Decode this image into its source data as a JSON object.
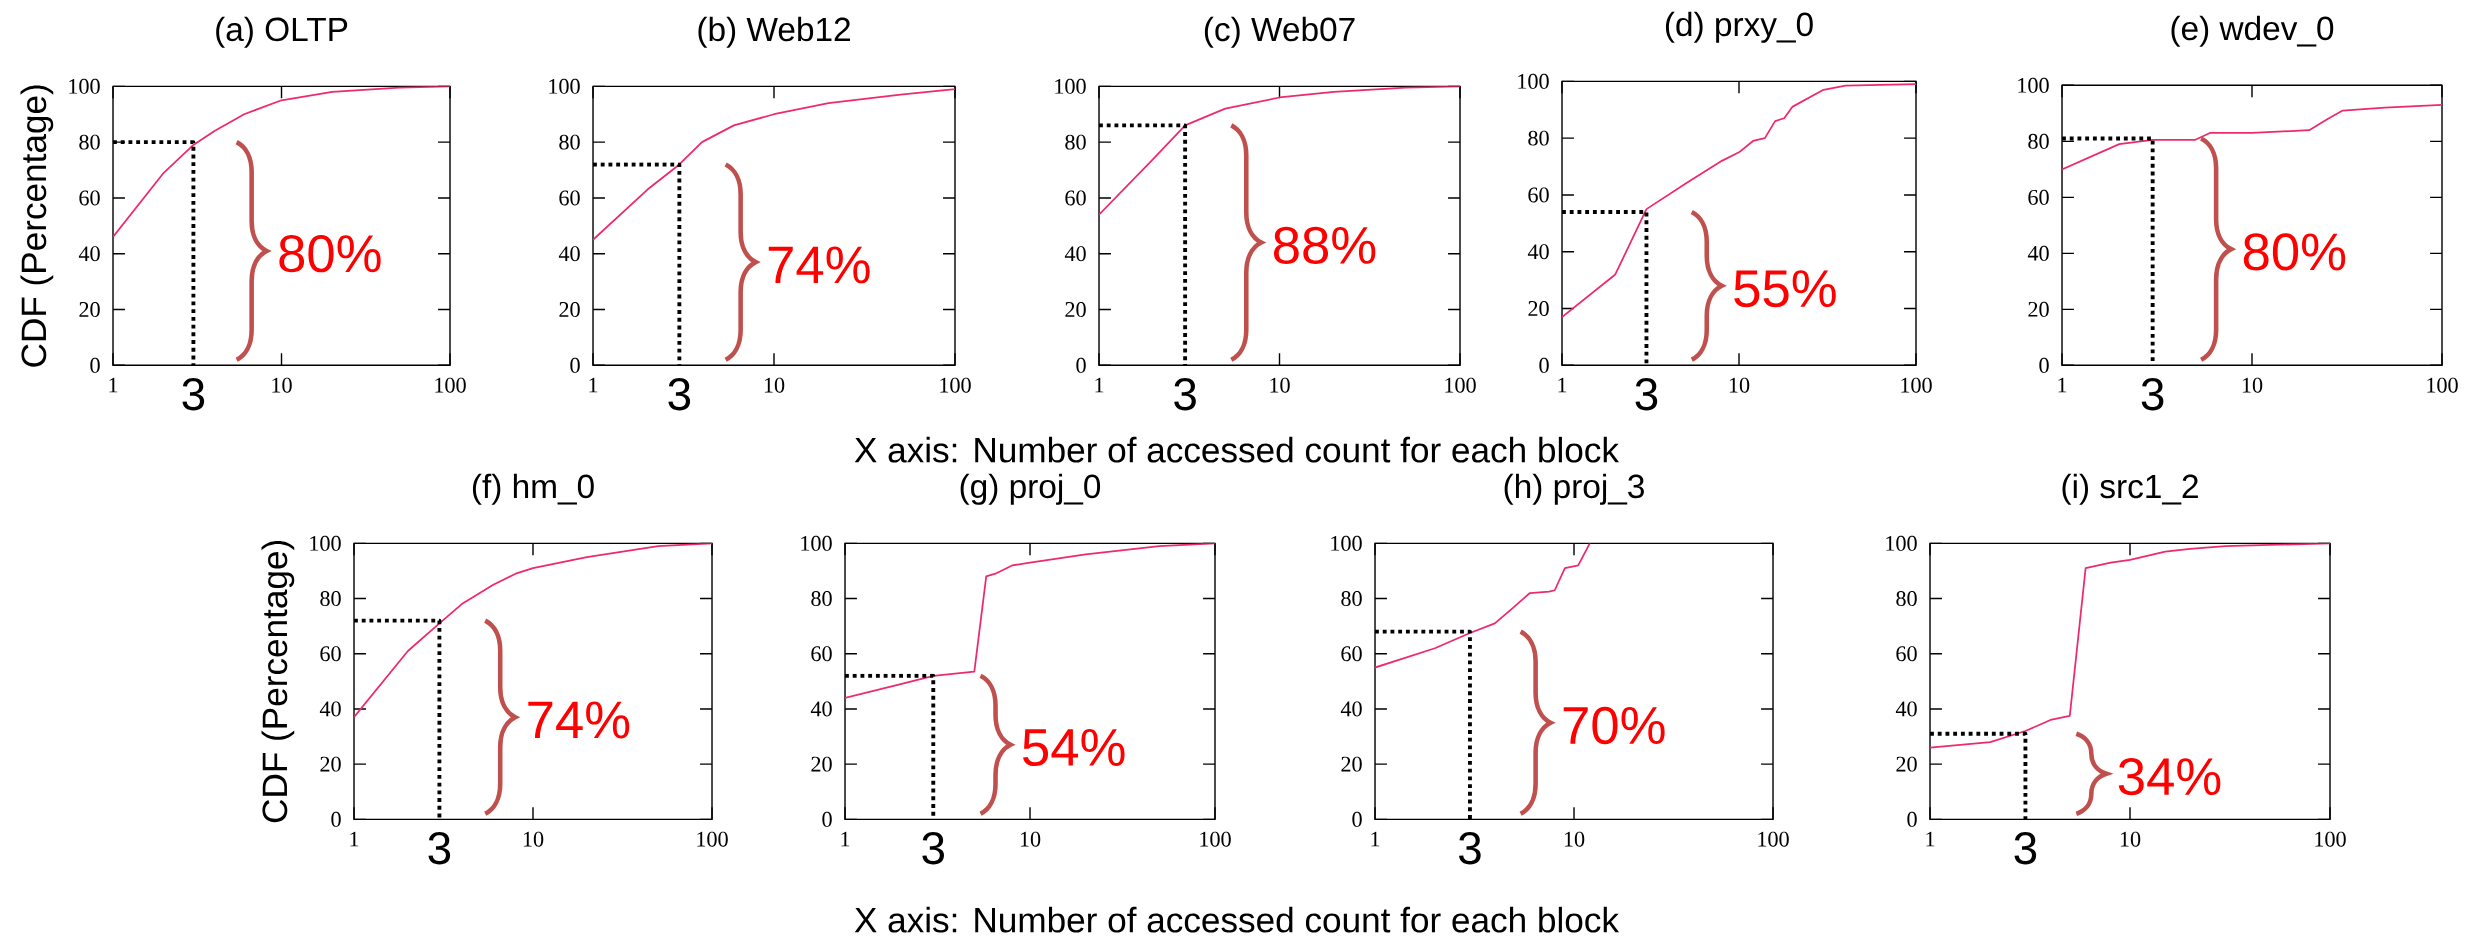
{
  "chart_data": [
    {
      "type": "line",
      "title": "(a) OLTP",
      "ylabel": "CDF (Percentage)",
      "log": "x",
      "xlim": [
        1,
        100
      ],
      "ylim": [
        0,
        100
      ],
      "xticks": [
        1,
        10,
        100
      ],
      "yticks": [
        0,
        20,
        40,
        60,
        80,
        100
      ],
      "annotations": [
        "80%",
        "3"
      ],
      "series": [
        {
          "color": "#ee2a6a",
          "x": [
            1,
            2,
            3,
            4,
            6,
            10,
            20,
            50,
            100
          ],
          "values": [
            46,
            69,
            79,
            84,
            90,
            95,
            98,
            99.5,
            100
          ]
        },
        {
          "color": "#000000",
          "line_style": "dotted",
          "x": [
            1,
            3,
            3
          ],
          "values": [
            80,
            80,
            0
          ]
        }
      ]
    },
    {
      "type": "line",
      "title": "(b) Web12",
      "log": "x",
      "xlim": [
        1,
        100
      ],
      "ylim": [
        0,
        100
      ],
      "xticks": [
        1,
        10,
        100
      ],
      "yticks": [
        0,
        20,
        40,
        60,
        80,
        100
      ],
      "annotations": [
        "74%",
        "3"
      ],
      "series": [
        {
          "color": "#ee2a6a",
          "x": [
            1,
            2,
            3,
            4,
            6,
            10,
            20,
            50,
            100
          ],
          "values": [
            45,
            63,
            72,
            80,
            86,
            90,
            94,
            97,
            99
          ]
        },
        {
          "color": "#000000",
          "line_style": "dotted",
          "x": [
            1,
            3,
            3
          ],
          "values": [
            72,
            72,
            0
          ]
        }
      ]
    },
    {
      "type": "line",
      "title": "(c) Web07",
      "xlabel": "X axis: Number of accessed count for each block",
      "log": "x",
      "xlim": [
        1,
        100
      ],
      "ylim": [
        0,
        100
      ],
      "xticks": [
        1,
        10,
        100
      ],
      "yticks": [
        0,
        20,
        40,
        60,
        80,
        100
      ],
      "annotations": [
        "88%",
        "3"
      ],
      "series": [
        {
          "color": "#ee2a6a",
          "x": [
            1,
            2,
            3,
            5,
            10,
            20,
            50,
            100
          ],
          "values": [
            54,
            74,
            86,
            92,
            96,
            98,
            99.5,
            100
          ]
        },
        {
          "color": "#000000",
          "line_style": "dotted",
          "x": [
            1,
            3,
            3
          ],
          "values": [
            86,
            86,
            0
          ]
        }
      ]
    },
    {
      "type": "line",
      "title": "(d) prxy_0",
      "log": "x",
      "xlim": [
        1,
        100
      ],
      "ylim": [
        0,
        100
      ],
      "xticks": [
        1,
        10,
        100
      ],
      "yticks": [
        0,
        20,
        40,
        60,
        80,
        100
      ],
      "annotations": [
        "55%",
        "3"
      ],
      "series": [
        {
          "color": "#ee2a6a",
          "x": [
            1,
            2,
            3,
            5,
            8,
            10,
            12,
            14,
            16,
            18,
            20,
            30,
            40,
            100
          ],
          "values": [
            17,
            32,
            55,
            64,
            72,
            75,
            79,
            80,
            86,
            87,
            91,
            97,
            98.5,
            99
          ]
        },
        {
          "color": "#000000",
          "line_style": "dotted",
          "x": [
            1,
            3,
            3
          ],
          "values": [
            54,
            54,
            0
          ]
        }
      ]
    },
    {
      "type": "line",
      "title": "(e) wdev_0",
      "log": "x",
      "xlim": [
        1,
        100
      ],
      "ylim": [
        0,
        100
      ],
      "xticks": [
        1,
        10,
        100
      ],
      "yticks": [
        0,
        20,
        40,
        60,
        80,
        100
      ],
      "annotations": [
        "80%",
        "3"
      ],
      "series": [
        {
          "color": "#ee2a6a",
          "x": [
            1,
            2,
            3,
            5,
            6,
            10,
            20,
            25,
            30,
            50,
            100
          ],
          "values": [
            70,
            79,
            80.5,
            80.5,
            83,
            83,
            84,
            88,
            91,
            92,
            93
          ]
        },
        {
          "color": "#000000",
          "line_style": "dotted",
          "x": [
            1,
            3,
            3
          ],
          "values": [
            81,
            81,
            0
          ]
        }
      ]
    },
    {
      "type": "line",
      "title": "(f) hm_0",
      "ylabel": "CDF (Percentage)",
      "log": "x",
      "xlim": [
        1,
        100
      ],
      "ylim": [
        0,
        100
      ],
      "xticks": [
        1,
        10,
        100
      ],
      "yticks": [
        0,
        20,
        40,
        60,
        80,
        100
      ],
      "annotations": [
        "74%",
        "3"
      ],
      "series": [
        {
          "color": "#ee2a6a",
          "x": [
            1,
            2,
            3,
            4,
            6,
            8,
            10,
            20,
            50,
            100
          ],
          "values": [
            37,
            61,
            71,
            78,
            85,
            89,
            91,
            95,
            99,
            100
          ]
        },
        {
          "color": "#000000",
          "line_style": "dotted",
          "x": [
            1,
            3,
            3
          ],
          "values": [
            72,
            72,
            0
          ]
        }
      ]
    },
    {
      "type": "line",
      "title": "(g) proj_0",
      "xlabel": "X axis: Number of accessed count for each block",
      "log": "x",
      "xlim": [
        1,
        100
      ],
      "ylim": [
        0,
        100
      ],
      "xticks": [
        1,
        10,
        100
      ],
      "yticks": [
        0,
        20,
        40,
        60,
        80,
        100
      ],
      "annotations": [
        "54%",
        "3"
      ],
      "series": [
        {
          "color": "#ee2a6a",
          "x": [
            1,
            2,
            3,
            5,
            5.8,
            6.5,
            8,
            10,
            20,
            50,
            100
          ],
          "values": [
            44,
            49,
            52,
            53.5,
            88,
            89,
            92,
            93,
            96,
            99,
            100
          ]
        },
        {
          "color": "#000000",
          "line_style": "dotted",
          "x": [
            1,
            3,
            3
          ],
          "values": [
            52,
            52,
            0
          ]
        }
      ]
    },
    {
      "type": "line",
      "title": "(h) proj_3",
      "log": "x",
      "xlim": [
        1,
        100
      ],
      "ylim": [
        0,
        100
      ],
      "xticks": [
        1,
        10,
        100
      ],
      "yticks": [
        0,
        20,
        40,
        60,
        80,
        100
      ],
      "annotations": [
        "70%",
        "3"
      ],
      "series": [
        {
          "color": "#ee2a6a",
          "x": [
            1,
            2,
            3,
            4,
            5,
            6,
            7.5,
            8,
            9,
            10.5,
            12
          ],
          "values": [
            55,
            62,
            67.5,
            71,
            77,
            82,
            82.5,
            83,
            91,
            92,
            100
          ]
        },
        {
          "color": "#000000",
          "line_style": "dotted",
          "x": [
            1,
            3,
            3
          ],
          "values": [
            68,
            68,
            0
          ]
        }
      ]
    },
    {
      "type": "line",
      "title": "(i) src1_2",
      "log": "x",
      "xlim": [
        1,
        100
      ],
      "ylim": [
        0,
        100
      ],
      "xticks": [
        1,
        10,
        100
      ],
      "yticks": [
        0,
        20,
        40,
        60,
        80,
        100
      ],
      "annotations": [
        "34%",
        "3"
      ],
      "series": [
        {
          "color": "#ee2a6a",
          "x": [
            1,
            2,
            3,
            4,
            5,
            6,
            8,
            10,
            15,
            20,
            30,
            100
          ],
          "values": [
            26,
            28,
            32,
            36,
            37.5,
            91,
            93,
            94,
            97,
            98,
            99,
            100
          ]
        },
        {
          "color": "#000000",
          "line_style": "dotted",
          "x": [
            1,
            3,
            3
          ],
          "values": [
            31,
            31,
            0
          ]
        }
      ]
    }
  ]
}
